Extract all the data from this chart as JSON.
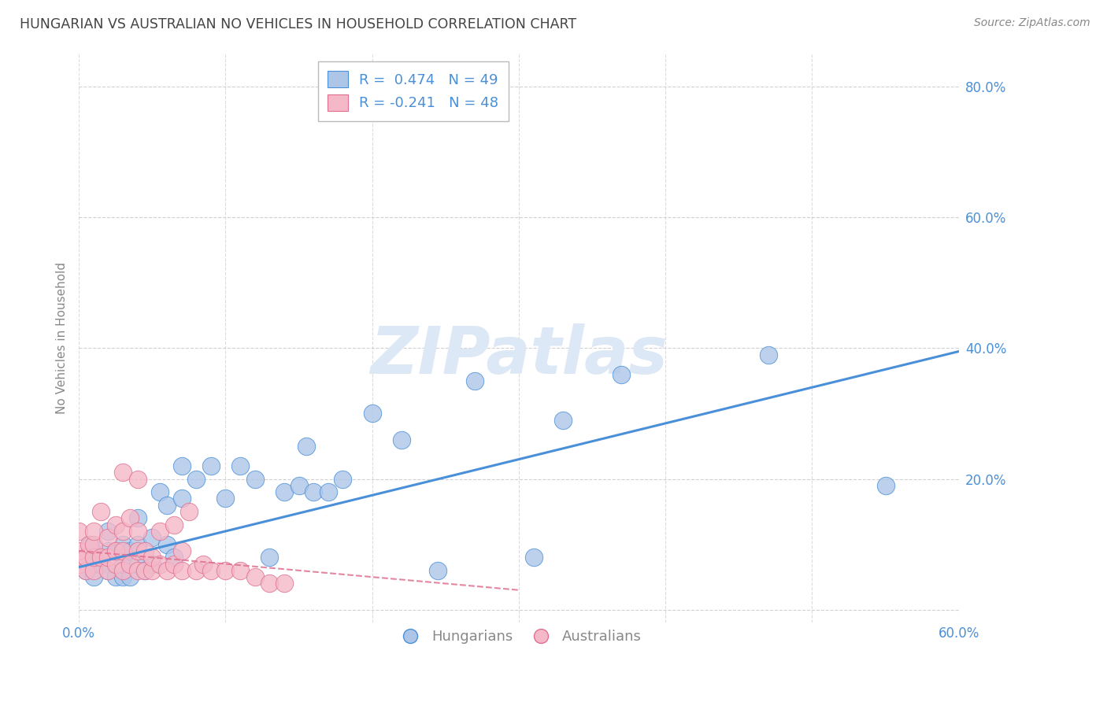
{
  "title": "HUNGARIAN VS AUSTRALIAN NO VEHICLES IN HOUSEHOLD CORRELATION CHART",
  "source": "Source: ZipAtlas.com",
  "ylabel": "No Vehicles in Household",
  "xlim": [
    0.0,
    0.6
  ],
  "ylim": [
    -0.02,
    0.85
  ],
  "xticks": [
    0.0,
    0.1,
    0.2,
    0.3,
    0.4,
    0.5,
    0.6
  ],
  "yticks": [
    0.0,
    0.2,
    0.4,
    0.6,
    0.8
  ],
  "blue_R": 0.474,
  "blue_N": 49,
  "pink_R": -0.241,
  "pink_N": 48,
  "blue_color": "#adc6e8",
  "pink_color": "#f4b8c8",
  "line_blue_color": "#4a90d9",
  "line_pink_color": "#e07090",
  "watermark_color": "#dce8f5",
  "title_color": "#444444",
  "grid_color": "#cccccc",
  "axis_color": "#888888",
  "blue_points_x": [
    0.005,
    0.008,
    0.01,
    0.01,
    0.01,
    0.015,
    0.02,
    0.02,
    0.02,
    0.025,
    0.025,
    0.03,
    0.03,
    0.03,
    0.035,
    0.035,
    0.04,
    0.04,
    0.04,
    0.045,
    0.05,
    0.05,
    0.055,
    0.06,
    0.06,
    0.065,
    0.07,
    0.07,
    0.08,
    0.09,
    0.1,
    0.11,
    0.12,
    0.13,
    0.14,
    0.15,
    0.155,
    0.16,
    0.17,
    0.18,
    0.2,
    0.22,
    0.245,
    0.27,
    0.31,
    0.33,
    0.37,
    0.47,
    0.55
  ],
  "blue_points_y": [
    0.06,
    0.1,
    0.07,
    0.05,
    0.08,
    0.07,
    0.06,
    0.09,
    0.12,
    0.05,
    0.09,
    0.05,
    0.07,
    0.1,
    0.05,
    0.09,
    0.07,
    0.1,
    0.14,
    0.06,
    0.07,
    0.11,
    0.18,
    0.1,
    0.16,
    0.08,
    0.17,
    0.22,
    0.2,
    0.22,
    0.17,
    0.22,
    0.2,
    0.08,
    0.18,
    0.19,
    0.25,
    0.18,
    0.18,
    0.2,
    0.3,
    0.26,
    0.06,
    0.35,
    0.08,
    0.29,
    0.36,
    0.39,
    0.19
  ],
  "pink_points_x": [
    0.0,
    0.0,
    0.0,
    0.005,
    0.005,
    0.007,
    0.01,
    0.01,
    0.01,
    0.01,
    0.015,
    0.015,
    0.02,
    0.02,
    0.02,
    0.025,
    0.025,
    0.025,
    0.03,
    0.03,
    0.03,
    0.03,
    0.035,
    0.035,
    0.04,
    0.04,
    0.04,
    0.04,
    0.045,
    0.045,
    0.05,
    0.05,
    0.055,
    0.055,
    0.06,
    0.065,
    0.065,
    0.07,
    0.07,
    0.075,
    0.08,
    0.085,
    0.09,
    0.1,
    0.11,
    0.12,
    0.13,
    0.14
  ],
  "pink_points_y": [
    0.07,
    0.09,
    0.12,
    0.06,
    0.08,
    0.1,
    0.06,
    0.08,
    0.1,
    0.12,
    0.08,
    0.15,
    0.06,
    0.08,
    0.11,
    0.07,
    0.09,
    0.13,
    0.06,
    0.09,
    0.12,
    0.21,
    0.07,
    0.14,
    0.06,
    0.09,
    0.12,
    0.2,
    0.06,
    0.09,
    0.06,
    0.08,
    0.07,
    0.12,
    0.06,
    0.07,
    0.13,
    0.06,
    0.09,
    0.15,
    0.06,
    0.07,
    0.06,
    0.06,
    0.06,
    0.05,
    0.04,
    0.04
  ],
  "blue_line_x_start": 0.0,
  "blue_line_x_end": 0.6,
  "blue_line_y_start": 0.065,
  "blue_line_y_end": 0.395,
  "pink_line_x_start": 0.0,
  "pink_line_x_end": 0.3,
  "pink_line_y_start": 0.09,
  "pink_line_y_end": 0.03
}
